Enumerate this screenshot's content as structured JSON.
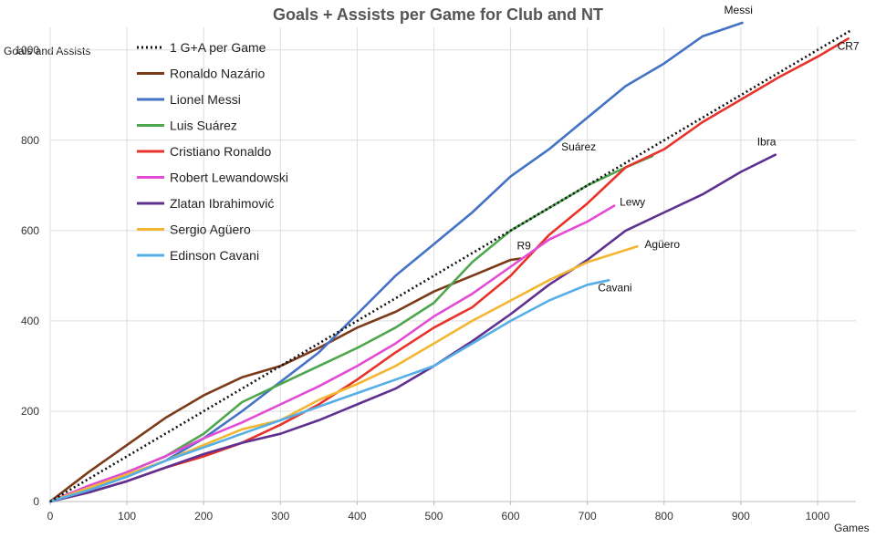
{
  "chart_data": {
    "type": "line",
    "title": "Goals + Assists per Game for Club and NT",
    "xlabel": "Games",
    "ylabel": "Goals and Assists",
    "xlim": [
      0,
      1050
    ],
    "ylim": [
      0,
      1050
    ],
    "xticks": [
      0,
      100,
      200,
      300,
      400,
      500,
      600,
      700,
      800,
      900,
      1000
    ],
    "yticks": [
      0,
      200,
      400,
      600,
      800,
      1000
    ],
    "grid": true,
    "legend_position": "top-left",
    "series": [
      {
        "name": "1 G+A per Game",
        "label": "",
        "color": "#111111",
        "dashed": true,
        "points": [
          [
            0,
            0
          ],
          [
            1045,
            1045
          ]
        ]
      },
      {
        "name": "Ronaldo Nazário",
        "label": "R9",
        "color": "#7b3a1a",
        "dashed": false,
        "points": [
          [
            0,
            0
          ],
          [
            50,
            65
          ],
          [
            100,
            125
          ],
          [
            150,
            185
          ],
          [
            200,
            235
          ],
          [
            250,
            275
          ],
          [
            300,
            300
          ],
          [
            350,
            340
          ],
          [
            400,
            385
          ],
          [
            450,
            420
          ],
          [
            500,
            465
          ],
          [
            550,
            500
          ],
          [
            600,
            535
          ],
          [
            613,
            538
          ]
        ]
      },
      {
        "name": "Lionel Messi",
        "label": "Messi",
        "color": "#4472c4",
        "dashed": false,
        "points": [
          [
            0,
            0
          ],
          [
            50,
            25
          ],
          [
            100,
            55
          ],
          [
            150,
            90
          ],
          [
            200,
            140
          ],
          [
            250,
            200
          ],
          [
            300,
            265
          ],
          [
            350,
            330
          ],
          [
            400,
            415
          ],
          [
            450,
            500
          ],
          [
            500,
            570
          ],
          [
            550,
            640
          ],
          [
            600,
            720
          ],
          [
            650,
            780
          ],
          [
            700,
            850
          ],
          [
            750,
            920
          ],
          [
            800,
            970
          ],
          [
            850,
            1030
          ],
          [
            902,
            1060
          ]
        ]
      },
      {
        "name": "Luis Suárez",
        "label": "Suárez",
        "color": "#4ea64e",
        "dashed": false,
        "points": [
          [
            0,
            0
          ],
          [
            50,
            30
          ],
          [
            100,
            65
          ],
          [
            150,
            100
          ],
          [
            200,
            150
          ],
          [
            250,
            220
          ],
          [
            300,
            260
          ],
          [
            350,
            300
          ],
          [
            400,
            340
          ],
          [
            450,
            385
          ],
          [
            500,
            440
          ],
          [
            550,
            530
          ],
          [
            600,
            600
          ],
          [
            650,
            650
          ],
          [
            700,
            700
          ],
          [
            750,
            740
          ],
          [
            785,
            765
          ]
        ]
      },
      {
        "name": "Cristiano Ronaldo",
        "label": "CR7",
        "color": "#e8332a",
        "dashed": false,
        "points": [
          [
            0,
            0
          ],
          [
            50,
            20
          ],
          [
            100,
            45
          ],
          [
            150,
            75
          ],
          [
            200,
            100
          ],
          [
            250,
            130
          ],
          [
            300,
            170
          ],
          [
            350,
            215
          ],
          [
            400,
            270
          ],
          [
            450,
            330
          ],
          [
            500,
            385
          ],
          [
            550,
            430
          ],
          [
            600,
            500
          ],
          [
            650,
            590
          ],
          [
            700,
            660
          ],
          [
            750,
            740
          ],
          [
            800,
            780
          ],
          [
            850,
            840
          ],
          [
            900,
            890
          ],
          [
            950,
            940
          ],
          [
            1000,
            985
          ],
          [
            1040,
            1025
          ]
        ]
      },
      {
        "name": "Robert Lewandowski",
        "label": "Lewy",
        "color": "#e34bd5",
        "dashed": false,
        "points": [
          [
            0,
            0
          ],
          [
            50,
            35
          ],
          [
            100,
            65
          ],
          [
            150,
            100
          ],
          [
            200,
            140
          ],
          [
            250,
            175
          ],
          [
            300,
            215
          ],
          [
            350,
            255
          ],
          [
            400,
            300
          ],
          [
            450,
            350
          ],
          [
            500,
            410
          ],
          [
            550,
            460
          ],
          [
            600,
            520
          ],
          [
            650,
            580
          ],
          [
            700,
            620
          ],
          [
            735,
            655
          ]
        ]
      },
      {
        "name": "Zlatan Ibrahimović",
        "label": "Ibra",
        "color": "#603090",
        "dashed": false,
        "points": [
          [
            0,
            0
          ],
          [
            50,
            20
          ],
          [
            100,
            45
          ],
          [
            150,
            75
          ],
          [
            200,
            105
          ],
          [
            250,
            130
          ],
          [
            300,
            150
          ],
          [
            350,
            180
          ],
          [
            400,
            215
          ],
          [
            450,
            250
          ],
          [
            500,
            300
          ],
          [
            550,
            355
          ],
          [
            600,
            415
          ],
          [
            650,
            480
          ],
          [
            700,
            535
          ],
          [
            750,
            600
          ],
          [
            800,
            640
          ],
          [
            850,
            680
          ],
          [
            900,
            730
          ],
          [
            945,
            768
          ]
        ]
      },
      {
        "name": "Sergio Agüero",
        "label": "Agüero",
        "color": "#f2b631",
        "dashed": false,
        "points": [
          [
            0,
            0
          ],
          [
            50,
            30
          ],
          [
            100,
            60
          ],
          [
            150,
            90
          ],
          [
            200,
            125
          ],
          [
            250,
            160
          ],
          [
            300,
            180
          ],
          [
            350,
            225
          ],
          [
            400,
            260
          ],
          [
            450,
            300
          ],
          [
            500,
            350
          ],
          [
            550,
            400
          ],
          [
            600,
            445
          ],
          [
            650,
            490
          ],
          [
            700,
            530
          ],
          [
            765,
            565
          ]
        ]
      },
      {
        "name": "Edinson Cavani",
        "label": "Cavani",
        "color": "#55aee5",
        "dashed": false,
        "points": [
          [
            0,
            0
          ],
          [
            50,
            25
          ],
          [
            100,
            55
          ],
          [
            150,
            90
          ],
          [
            200,
            120
          ],
          [
            250,
            150
          ],
          [
            300,
            180
          ],
          [
            350,
            210
          ],
          [
            400,
            240
          ],
          [
            450,
            270
          ],
          [
            500,
            300
          ],
          [
            550,
            350
          ],
          [
            600,
            400
          ],
          [
            650,
            445
          ],
          [
            700,
            480
          ],
          [
            728,
            490
          ]
        ]
      }
    ]
  }
}
